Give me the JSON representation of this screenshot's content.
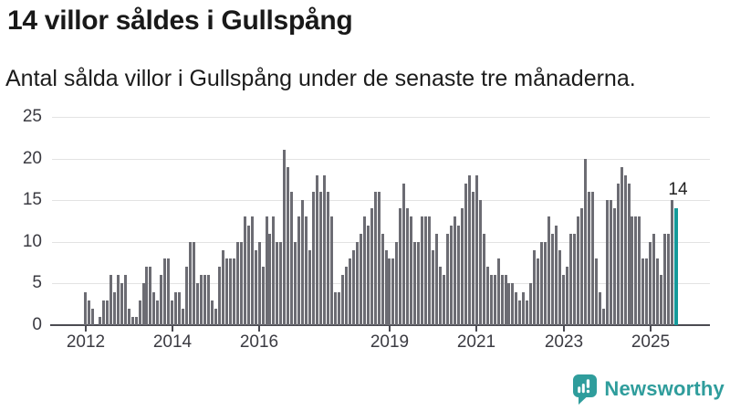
{
  "header": {
    "title": "14 villor såldes i Gullspång",
    "subtitle": "Antal sålda villor i Gullspång under de senaste tre månaderna."
  },
  "annotation": {
    "last_value_label": "14"
  },
  "branding": {
    "name": "Newsworthy",
    "icon": "newsworthy-speech-bubble-bar-chart-icon"
  },
  "colors": {
    "bar": "#6c6c73",
    "highlight_bar": "#149a9a",
    "brand_teal": "#2f9d9c",
    "gridline": "#e3e3e3",
    "axis": "#4b4b52",
    "title_text": "#191919",
    "tick_text": "#3b3b42"
  },
  "chart_data": {
    "type": "bar",
    "title": "14 villor såldes i Gullspång",
    "subtitle": "Antal sålda villor i Gullspång under de senaste tre månaderna.",
    "interval": "monthly (rolling 3-month count)",
    "x_start": "2012-01",
    "x_end": "2025-08",
    "xlabel": "",
    "ylabel": "",
    "ylim": [
      0,
      25
    ],
    "grid": "horizontal",
    "legend": "none",
    "yticks": [
      0,
      5,
      10,
      15,
      20,
      25
    ],
    "xticks": [
      {
        "label": "2012",
        "month_index": 0
      },
      {
        "label": "2014",
        "month_index": 24
      },
      {
        "label": "2016",
        "month_index": 48
      },
      {
        "label": "2019",
        "month_index": 84
      },
      {
        "label": "2021",
        "month_index": 108
      },
      {
        "label": "2023",
        "month_index": 132
      },
      {
        "label": "2025",
        "month_index": 156
      }
    ],
    "highlight_last_bar": true,
    "last_value": 14,
    "values": [
      4,
      3,
      2,
      0,
      1,
      3,
      3,
      6,
      4,
      6,
      5,
      6,
      2,
      1,
      1,
      3,
      5,
      7,
      7,
      4,
      3,
      6,
      8,
      8,
      3,
      4,
      4,
      2,
      7,
      10,
      10,
      5,
      6,
      6,
      6,
      3,
      2,
      7,
      9,
      8,
      8,
      8,
      10,
      10,
      13,
      12,
      13,
      9,
      10,
      7,
      13,
      11,
      13,
      10,
      10,
      21,
      19,
      16,
      10,
      13,
      15,
      13,
      9,
      16,
      18,
      16,
      18,
      16,
      13,
      4,
      4,
      6,
      7,
      8,
      9,
      10,
      11,
      13,
      12,
      14,
      16,
      16,
      11,
      9,
      8,
      8,
      10,
      14,
      17,
      14,
      13,
      10,
      10,
      13,
      13,
      13,
      9,
      11,
      7,
      6,
      11,
      12,
      13,
      12,
      14,
      17,
      18,
      16,
      18,
      15,
      11,
      7,
      6,
      6,
      8,
      6,
      6,
      5,
      5,
      4,
      3,
      4,
      3,
      5,
      9,
      8,
      10,
      10,
      13,
      11,
      12,
      9,
      6,
      7,
      11,
      11,
      13,
      14,
      20,
      16,
      16,
      8,
      4,
      2,
      15,
      15,
      14,
      17,
      19,
      18,
      17,
      13,
      13,
      13,
      8,
      8,
      10,
      11,
      8,
      6,
      11,
      11,
      15,
      14
    ]
  }
}
